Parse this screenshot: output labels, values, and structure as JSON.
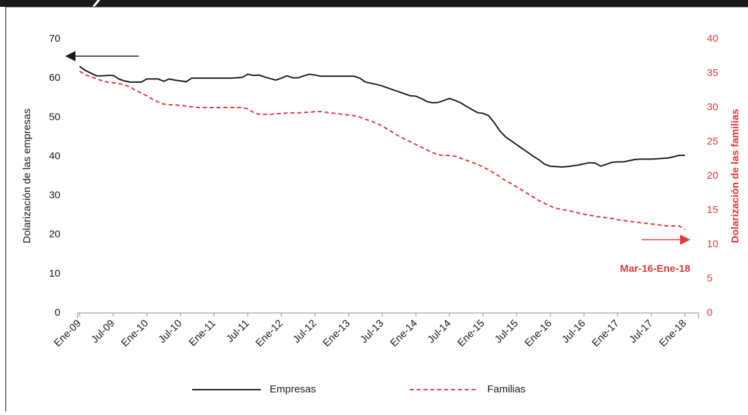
{
  "chart_data": {
    "type": "line",
    "y_label": "Dolarización de las empresas",
    "y2_label": "Dolarización de las familias",
    "annotation": "Mar-16-Ene-18",
    "categories": [
      "Ene-09",
      null,
      null,
      null,
      null,
      null,
      "Jul-09",
      null,
      null,
      null,
      null,
      null,
      "Ene-10",
      null,
      null,
      null,
      null,
      null,
      "Jul-10",
      null,
      null,
      null,
      null,
      null,
      "Ene-11",
      null,
      null,
      null,
      null,
      null,
      "Jul-11",
      null,
      null,
      null,
      null,
      null,
      "Ene-12",
      null,
      null,
      null,
      null,
      null,
      "Jul-12",
      null,
      null,
      null,
      null,
      null,
      "Ene-13",
      null,
      null,
      null,
      null,
      null,
      "Jul-13",
      null,
      null,
      null,
      null,
      null,
      "Ene-14",
      null,
      null,
      null,
      null,
      null,
      "Jul-14",
      null,
      null,
      null,
      null,
      null,
      "Ene-15",
      null,
      null,
      null,
      null,
      null,
      "Jul-15",
      null,
      null,
      null,
      null,
      null,
      "Ene-16",
      null,
      null,
      null,
      null,
      null,
      "Jul-16",
      null,
      null,
      null,
      null,
      null,
      "Ene-17",
      null,
      null,
      null,
      null,
      null,
      "Jul-17",
      null,
      null,
      null,
      null,
      null,
      "Ene-18"
    ],
    "series": [
      {
        "name": "Empresas",
        "color": "#1a1a1a",
        "dash": false,
        "values": [
          63,
          62,
          61.3,
          60.6,
          60.6,
          60.7,
          60.7,
          59.8,
          59.3,
          59,
          59,
          59,
          59.8,
          59.8,
          59.8,
          59.2,
          59.8,
          59.5,
          59.3,
          59.1,
          60,
          60,
          60,
          60,
          60,
          60,
          60,
          60,
          60.1,
          60.2,
          61,
          60.7,
          60.8,
          60.3,
          59.9,
          59.5,
          60,
          60.6,
          60.1,
          60.1,
          60.6,
          61,
          60.8,
          60.5,
          60.5,
          60.5,
          60.5,
          60.5,
          60.5,
          60.5,
          60,
          59,
          58.7,
          58.4,
          58,
          57.5,
          57,
          56.5,
          56,
          55.5,
          55.4,
          54.8,
          54,
          53.7,
          53.8,
          54.3,
          54.8,
          54.3,
          53.7,
          52.8,
          52,
          51.2,
          51,
          50.4,
          48.6,
          46.5,
          45,
          44,
          43,
          42,
          41,
          40,
          39.1,
          38,
          37.5,
          37.4,
          37.3,
          37.4,
          37.6,
          37.8,
          38.1,
          38.4,
          38.3,
          37.5,
          38,
          38.5,
          38.6,
          38.6,
          38.9,
          39.2,
          39.3,
          39.3,
          39.3,
          39.4,
          39.5,
          39.6,
          39.9,
          40.3,
          40.3
        ]
      },
      {
        "name": "Familias",
        "color": "#e03a3e",
        "dash": true,
        "axis": "y2",
        "values": [
          35.3,
          34.8,
          34.5,
          34.2,
          33.9,
          33.7,
          33.6,
          33.5,
          33.3,
          33,
          32.5,
          32.1,
          31.7,
          31.2,
          30.8,
          30.5,
          30.4,
          30.4,
          30.3,
          30.2,
          30.1,
          30,
          30,
          30,
          30,
          30,
          30,
          30,
          30,
          30,
          29.8,
          29.3,
          29,
          29,
          29,
          29.1,
          29.1,
          29.2,
          29.2,
          29.2,
          29.3,
          29.3,
          29.4,
          29.4,
          29.3,
          29.2,
          29.1,
          29,
          28.9,
          28.8,
          28.6,
          28.3,
          28,
          27.7,
          27.3,
          26.8,
          26.3,
          25.8,
          25.4,
          25,
          24.6,
          24.2,
          23.8,
          23.4,
          23.1,
          23,
          23,
          22.9,
          22.6,
          22.3,
          22,
          21.7,
          21.3,
          20.9,
          20.4,
          19.9,
          19.3,
          18.9,
          18.4,
          17.9,
          17.4,
          16.9,
          16.4,
          16,
          15.6,
          15.3,
          15.1,
          15,
          14.8,
          14.6,
          14.4,
          14.3,
          14.1,
          14,
          13.9,
          13.8,
          13.6,
          13.5,
          13.4,
          13.3,
          13.2,
          13.1,
          13,
          12.9,
          12.8,
          12.7,
          12.7,
          12.7,
          12.2
        ]
      }
    ],
    "ylim": [
      0,
      70
    ],
    "yticks": [
      0,
      10,
      20,
      30,
      40,
      50,
      60,
      70
    ],
    "y2lim": [
      0,
      40
    ],
    "y2ticks": [
      0,
      5,
      10,
      15,
      20,
      25,
      30,
      35,
      40
    ]
  }
}
